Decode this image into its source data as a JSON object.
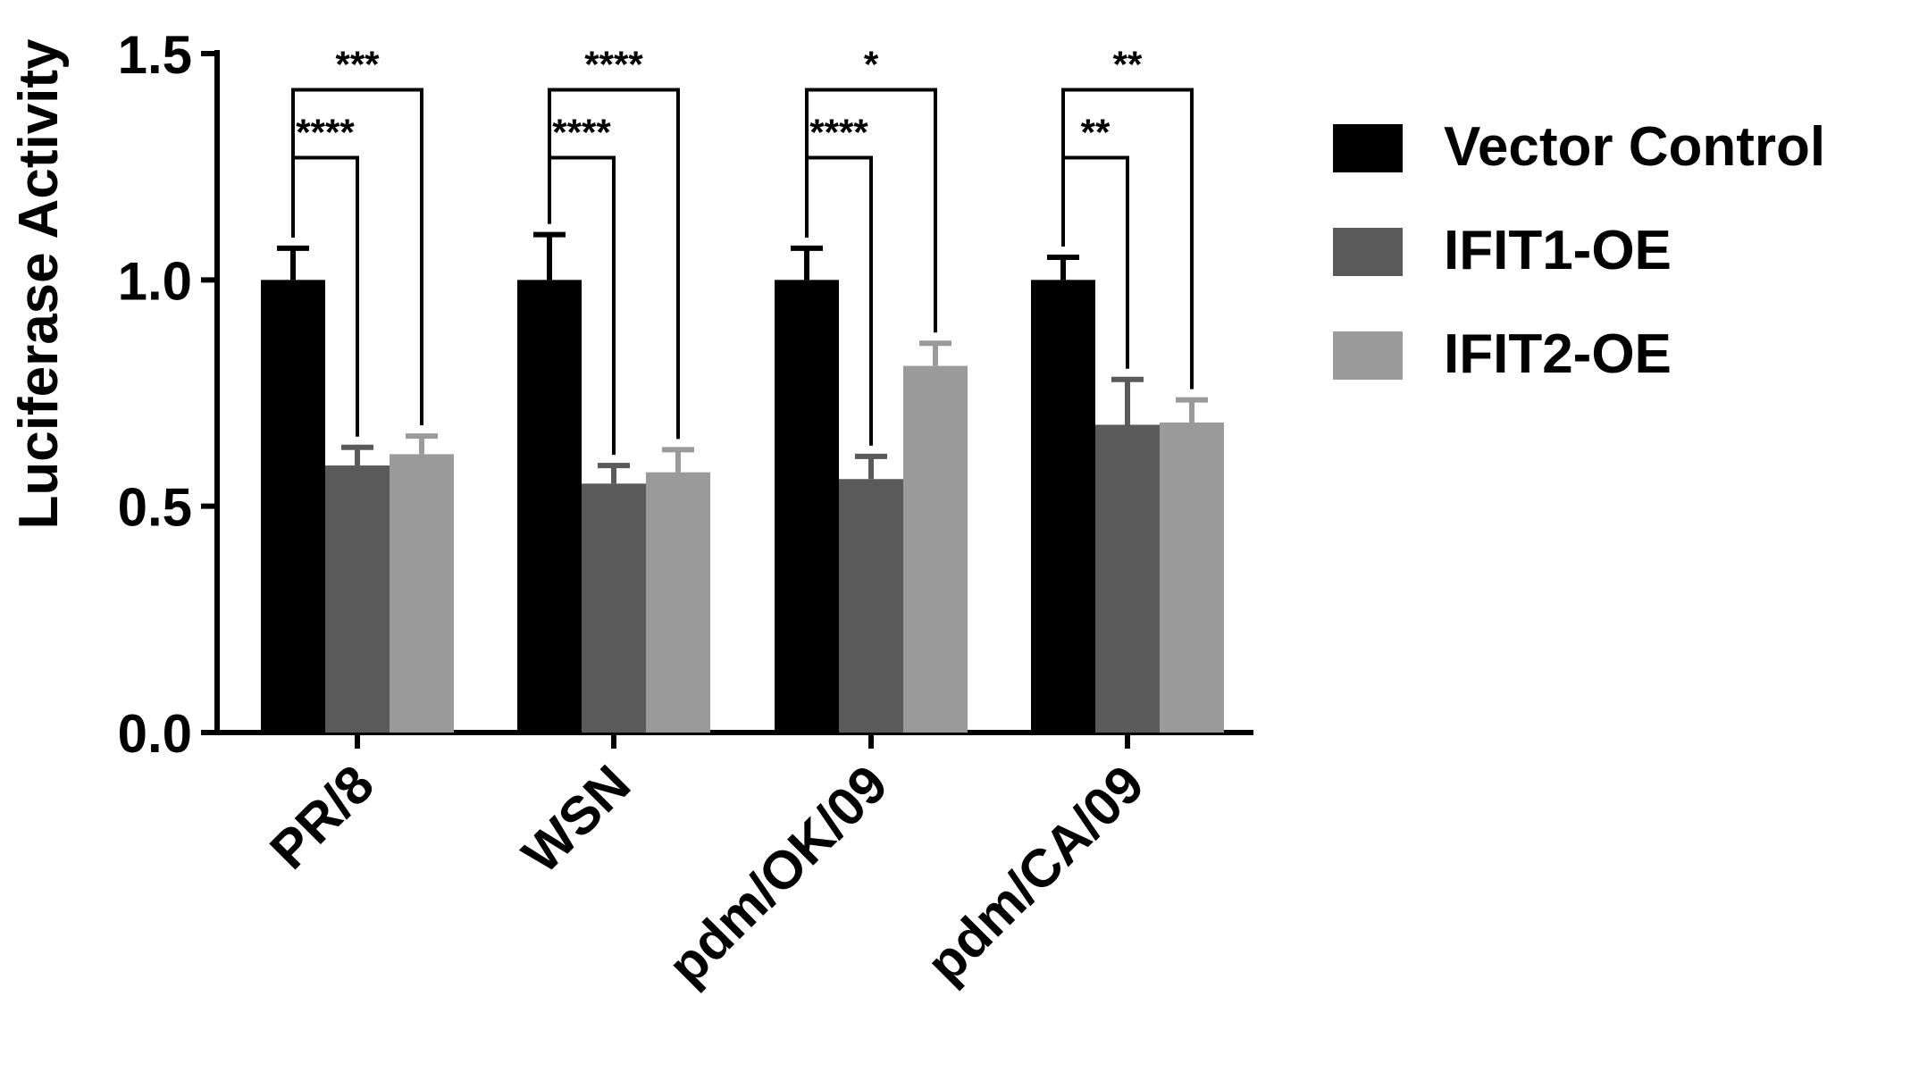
{
  "chart_data": {
    "type": "bar",
    "title": "",
    "xlabel": "",
    "ylabel": "Luciferase Activity",
    "ylim": [
      0,
      1.5
    ],
    "yticks": [
      "0.0",
      "0.5",
      "1.0",
      "1.5"
    ],
    "categories": [
      "PR/8",
      "WSN",
      "pdm/OK/09",
      "pdm/CA/09"
    ],
    "series": [
      {
        "name": "Vector Control",
        "color": "#000000",
        "values": [
          1.0,
          1.0,
          1.0,
          1.0
        ],
        "errors": [
          0.07,
          0.1,
          0.07,
          0.05
        ]
      },
      {
        "name": "IFIT1-OE",
        "color": "#5a5a5a",
        "values": [
          0.59,
          0.55,
          0.56,
          0.68
        ],
        "errors": [
          0.04,
          0.04,
          0.05,
          0.1
        ]
      },
      {
        "name": "IFIT2-OE",
        "color": "#9a9a9a",
        "values": [
          0.615,
          0.575,
          0.81,
          0.685
        ],
        "errors": [
          0.04,
          0.05,
          0.05,
          0.05
        ]
      }
    ],
    "legend": {
      "position": "right"
    },
    "grid": false,
    "significance": [
      {
        "category": 0,
        "from": 0,
        "to": 2,
        "label": "***",
        "level": "outer"
      },
      {
        "category": 0,
        "from": 0,
        "to": 1,
        "label": "****",
        "level": "inner"
      },
      {
        "category": 1,
        "from": 0,
        "to": 2,
        "label": "****",
        "level": "outer"
      },
      {
        "category": 1,
        "from": 0,
        "to": 1,
        "label": "****",
        "level": "inner"
      },
      {
        "category": 2,
        "from": 0,
        "to": 2,
        "label": "*",
        "level": "outer"
      },
      {
        "category": 2,
        "from": 0,
        "to": 1,
        "label": "****",
        "level": "inner"
      },
      {
        "category": 3,
        "from": 0,
        "to": 2,
        "label": "**",
        "level": "outer"
      },
      {
        "category": 3,
        "from": 0,
        "to": 1,
        "label": "**",
        "level": "inner"
      }
    ]
  }
}
